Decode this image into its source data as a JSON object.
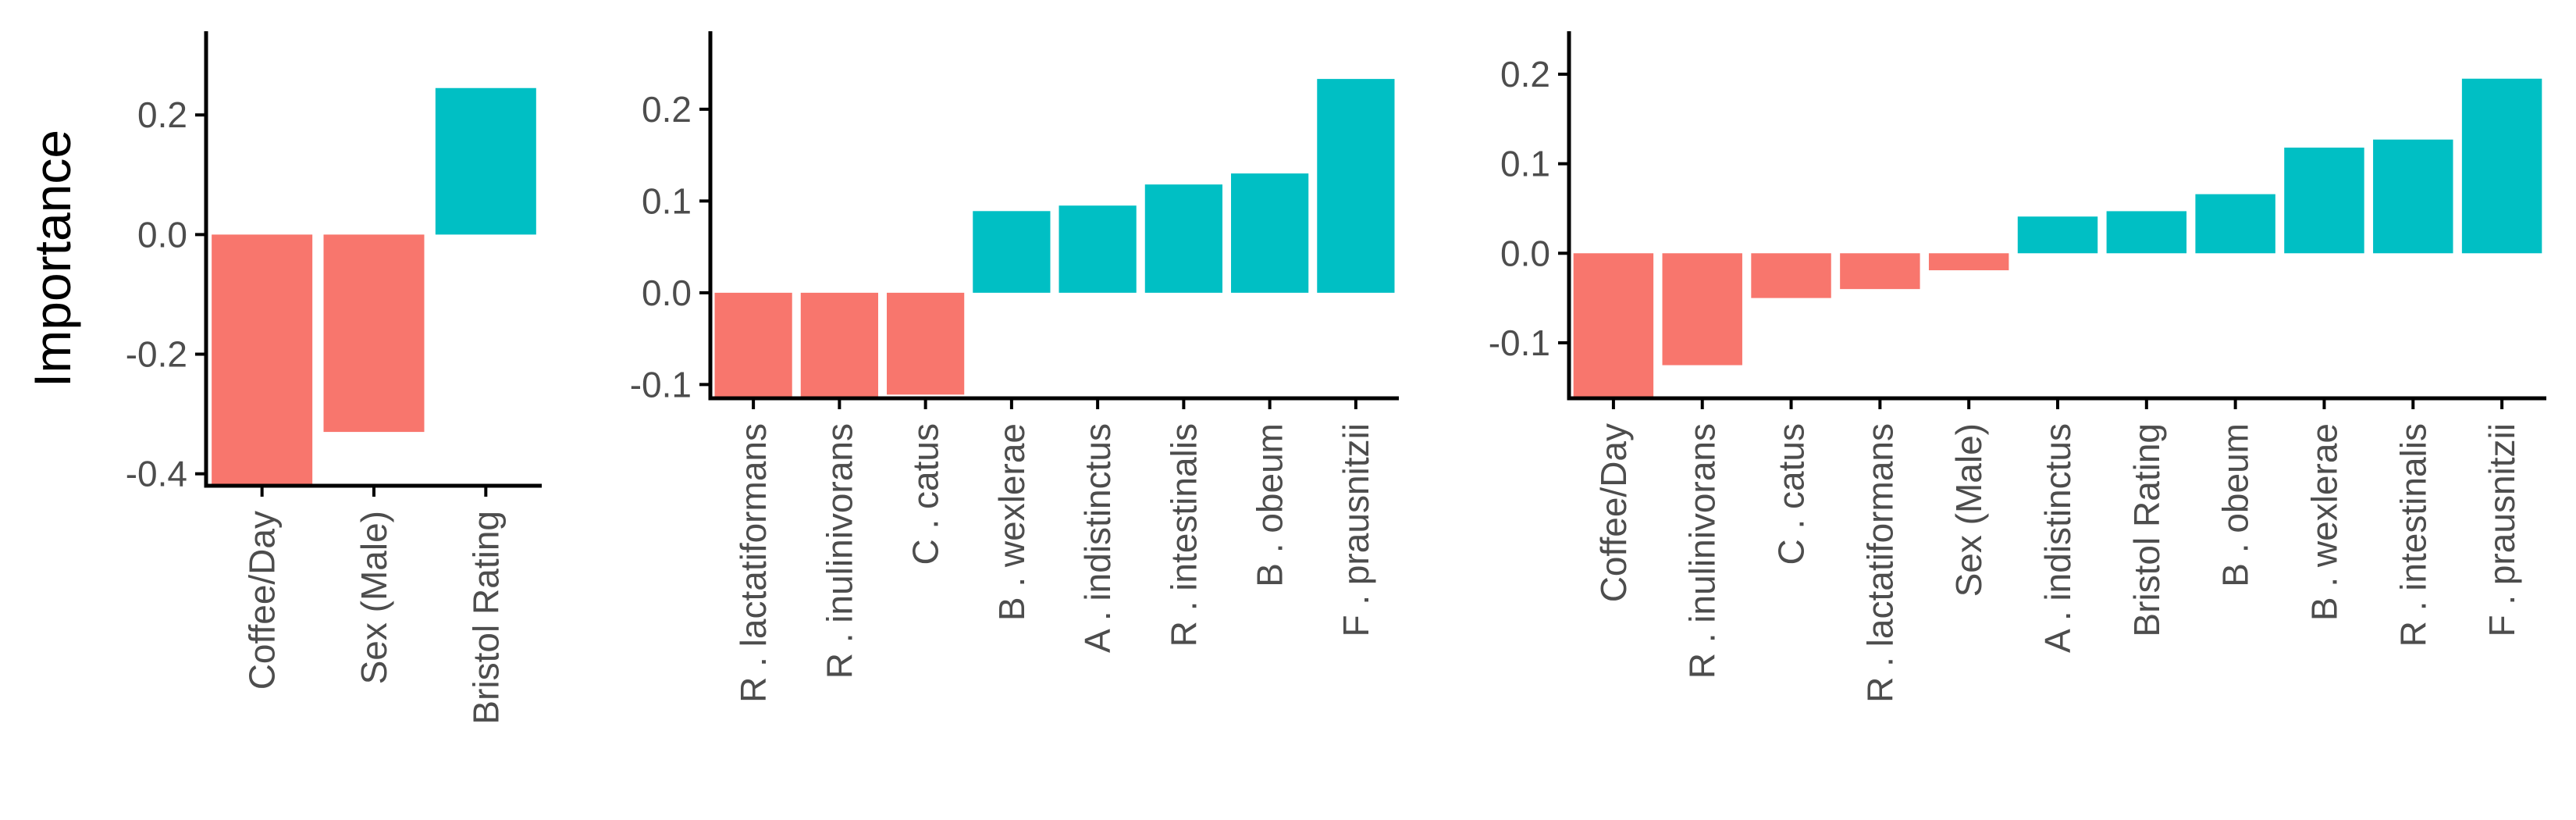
{
  "colors": {
    "negative": "#F8766D",
    "positive": "#00BFC4",
    "axis": "#000000",
    "tick_text": "#4D4D4D"
  },
  "chart_data": [
    {
      "type": "bar",
      "ylabel": "Importance",
      "ylim": [
        -0.42,
        0.34
      ],
      "yticks": [
        -0.4,
        -0.2,
        0.0,
        0.2
      ],
      "ytick_labels": [
        "-0.4",
        "-0.2",
        "0.0",
        "0.2"
      ],
      "categories": [
        "Coffee/Day",
        "Sex (Male)",
        "Bristol Rating"
      ],
      "values": [
        -0.42,
        -0.33,
        0.245
      ],
      "grid": false,
      "legend": "none"
    },
    {
      "type": "bar",
      "ylabel": "",
      "ylim": [
        -0.115,
        0.285
      ],
      "yticks": [
        -0.1,
        0.0,
        0.1,
        0.2
      ],
      "ytick_labels": [
        "-0.1",
        "0.0",
        "0.1",
        "0.2"
      ],
      "categories": [
        "R . lactatiformans",
        "R . inulinivorans",
        "C . catus",
        "B . wexlerae",
        "A . indistinctus",
        "R . intestinalis",
        "B . obeum",
        "F . prausnitzii"
      ],
      "values": [
        -0.115,
        -0.115,
        -0.111,
        0.089,
        0.095,
        0.118,
        0.13,
        0.233
      ],
      "grid": false,
      "legend": "none"
    },
    {
      "type": "bar",
      "ylabel": "",
      "ylim": [
        -0.162,
        0.248
      ],
      "yticks": [
        -0.1,
        0.0,
        0.1,
        0.2
      ],
      "ytick_labels": [
        "-0.1",
        "0.0",
        "0.1",
        "0.2"
      ],
      "categories": [
        "Coffee/Day",
        "R . inulinivorans",
        "C . catus",
        "R . lactatiformans",
        "Sex (Male)",
        "A . indistinctus",
        "Bristol Rating",
        "B . obeum",
        "B . wexlerae",
        "R . intestinalis",
        "F . prausnitzii"
      ],
      "values": [
        -0.162,
        -0.125,
        -0.05,
        -0.04,
        -0.019,
        0.041,
        0.047,
        0.066,
        0.118,
        0.127,
        0.195
      ],
      "grid": false,
      "legend": "none"
    }
  ]
}
